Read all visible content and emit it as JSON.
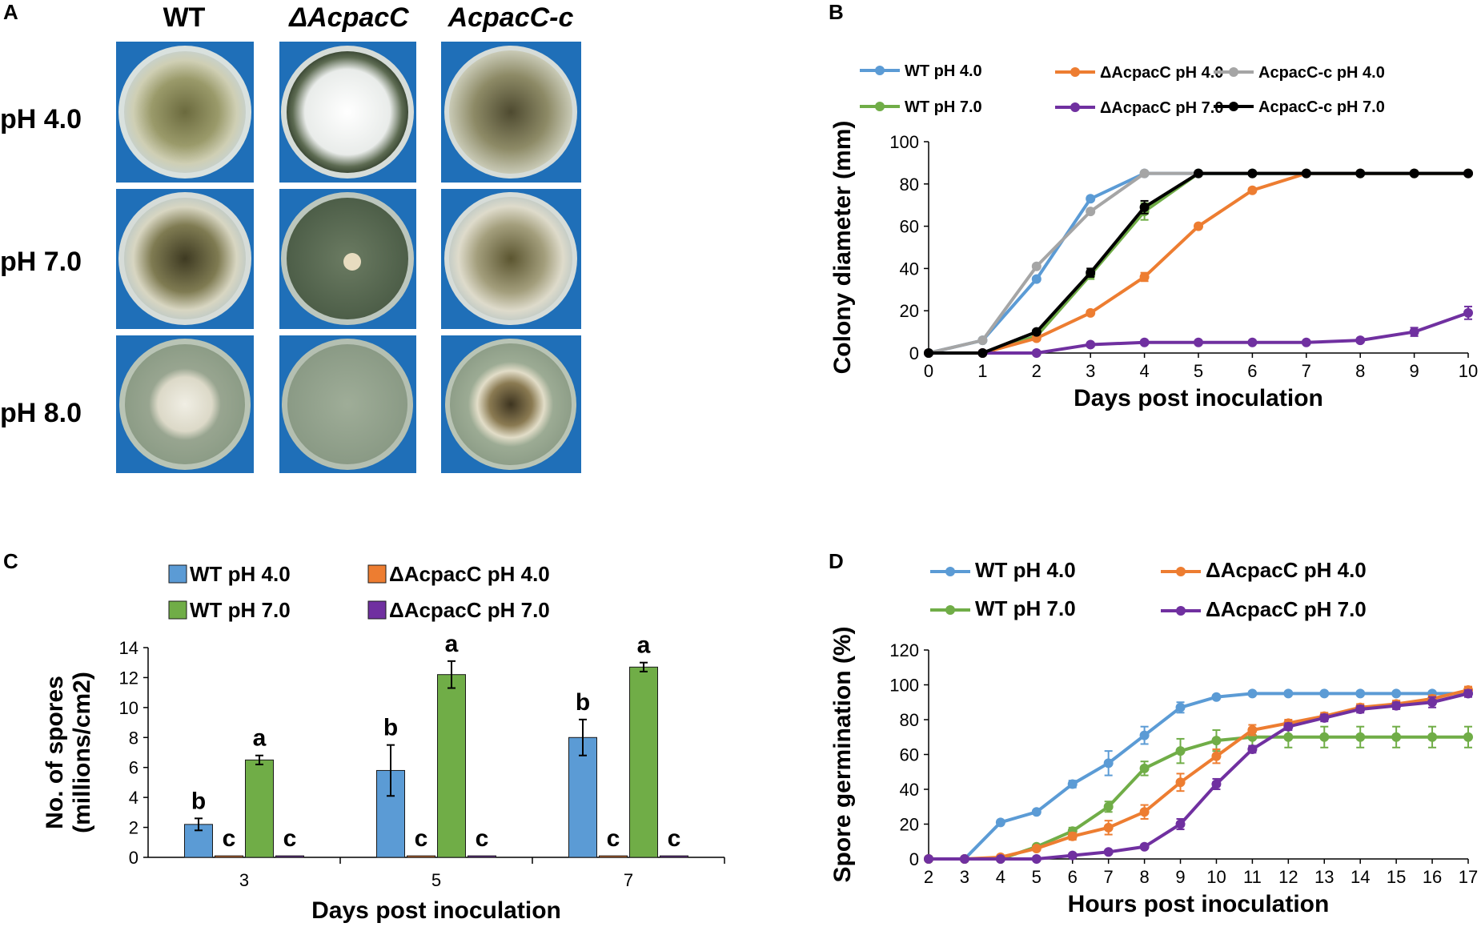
{
  "panels": {
    "a": "A",
    "b": "B",
    "c": "C",
    "d": "D"
  },
  "panel_a": {
    "columns": [
      "WT",
      "ΔAcpacC",
      "AcpacC-c"
    ],
    "rows": [
      "pH 4.0",
      "pH 7.0",
      "pH 8.0"
    ]
  },
  "chart_data": [
    {
      "id": "B",
      "type": "line",
      "xlabel": "Days post inoculation",
      "ylabel": "Colony diameter (mm)",
      "xlim": [
        0,
        10
      ],
      "ylim": [
        0,
        100
      ],
      "xticks": [
        0,
        1,
        2,
        3,
        4,
        5,
        6,
        7,
        8,
        9,
        10
      ],
      "yticks": [
        0,
        20,
        40,
        60,
        80,
        100
      ],
      "x": [
        0,
        1,
        2,
        3,
        4,
        5,
        6,
        7,
        8,
        9,
        10
      ],
      "series": [
        {
          "name": "WT pH 4.0",
          "color": "#5b9bd5",
          "values": [
            0,
            6,
            35,
            73,
            85,
            85,
            85,
            85,
            85,
            85,
            85
          ],
          "errors": [
            0,
            0,
            1,
            1,
            0,
            0,
            0,
            0,
            0,
            0,
            0
          ]
        },
        {
          "name": "WT pH 7.0",
          "color": "#70ad47",
          "values": [
            0,
            0,
            8,
            37,
            67,
            85,
            85,
            85,
            85,
            85,
            85
          ],
          "errors": [
            0,
            0,
            1,
            2,
            4,
            0,
            0,
            0,
            0,
            0,
            0
          ]
        },
        {
          "name": "ΔAcpacC  pH 4.0",
          "color": "#ed7d31",
          "values": [
            0,
            0,
            7,
            19,
            36,
            60,
            77,
            85,
            85,
            85,
            85
          ],
          "errors": [
            0,
            0,
            1,
            1,
            2,
            1,
            1,
            0,
            0,
            0,
            0
          ]
        },
        {
          "name": "ΔAcpacC  pH 7.0",
          "color": "#7030a0",
          "values": [
            0,
            0,
            0,
            4,
            5,
            5,
            5,
            5,
            6,
            10,
            19
          ],
          "errors": [
            0,
            0,
            0,
            0,
            0,
            0,
            0,
            0,
            1,
            2,
            3
          ]
        },
        {
          "name": "AcpacC-c pH 4.0",
          "color": "#a5a5a5",
          "values": [
            0,
            6,
            41,
            67,
            85,
            85,
            85,
            85,
            85,
            85,
            85
          ],
          "errors": [
            0,
            0,
            1,
            1,
            0,
            0,
            0,
            0,
            0,
            0,
            0
          ]
        },
        {
          "name": "AcpacC-c pH 7.0",
          "color": "#000000",
          "values": [
            0,
            0,
            10,
            38,
            69,
            85,
            85,
            85,
            85,
            85,
            85
          ],
          "errors": [
            0,
            0,
            1,
            2,
            3,
            0,
            0,
            0,
            0,
            0,
            0
          ]
        }
      ]
    },
    {
      "id": "C",
      "type": "bar",
      "xlabel": "Days post inoculation",
      "ylabel": "No. of spores",
      "ylabel2": "(millions/cm2)",
      "categories": [
        "3",
        "5",
        "7"
      ],
      "ylim": [
        0,
        14
      ],
      "yticks": [
        0,
        2,
        4,
        6,
        8,
        10,
        12,
        14
      ],
      "series": [
        {
          "name": "WT pH 4.0",
          "color": "#5b9bd5",
          "values": [
            2.2,
            5.8,
            8.0
          ],
          "errors": [
            0.4,
            1.7,
            1.2
          ],
          "letters": [
            "b",
            "b",
            "b"
          ]
        },
        {
          "name": "ΔAcpacC pH 4.0",
          "color": "#ed7d31",
          "values": [
            0.1,
            0.1,
            0.1
          ],
          "errors": [
            0,
            0,
            0
          ],
          "letters": [
            "c",
            "c",
            "c"
          ]
        },
        {
          "name": "WT pH 7.0",
          "color": "#70ad47",
          "values": [
            6.5,
            12.2,
            12.7
          ],
          "errors": [
            0.3,
            0.9,
            0.3
          ],
          "letters": [
            "a",
            "a",
            "a"
          ]
        },
        {
          "name": "ΔAcpacC pH 7.0",
          "color": "#7030a0",
          "values": [
            0.1,
            0.1,
            0.1
          ],
          "errors": [
            0,
            0,
            0
          ],
          "letters": [
            "c",
            "c",
            "c"
          ]
        }
      ]
    },
    {
      "id": "D",
      "type": "line",
      "xlabel": "Hours post inoculation",
      "ylabel": "Spore germination (%)",
      "xlim": [
        2,
        17
      ],
      "ylim": [
        0,
        120
      ],
      "xticks": [
        2,
        3,
        4,
        5,
        6,
        7,
        8,
        9,
        10,
        11,
        12,
        13,
        14,
        15,
        16,
        17
      ],
      "yticks": [
        0,
        20,
        40,
        60,
        80,
        100,
        120
      ],
      "x": [
        2,
        3,
        4,
        5,
        6,
        7,
        8,
        9,
        10,
        11,
        12,
        13,
        14,
        15,
        16,
        17
      ],
      "series": [
        {
          "name": "WT pH 4.0",
          "color": "#5b9bd5",
          "values": [
            0,
            0,
            21,
            27,
            43,
            55,
            71,
            87,
            93,
            95,
            95,
            95,
            95,
            95,
            95,
            95
          ],
          "errors": [
            0,
            0,
            1,
            1,
            2,
            7,
            5,
            3,
            1,
            1,
            1,
            1,
            1,
            1,
            1,
            1
          ]
        },
        {
          "name": "WT pH 7.0",
          "color": "#70ad47",
          "values": [
            0,
            0,
            0,
            7,
            16,
            30,
            52,
            62,
            68,
            70,
            70,
            70,
            70,
            70,
            70,
            70
          ],
          "errors": [
            0,
            0,
            0,
            1,
            2,
            3,
            4,
            7,
            6,
            5,
            6,
            6,
            6,
            6,
            6,
            6
          ]
        },
        {
          "name": "ΔAcpacC pH 4.0",
          "color": "#ed7d31",
          "values": [
            0,
            0,
            1,
            6,
            13,
            18,
            27,
            44,
            59,
            74,
            78,
            82,
            87,
            89,
            92,
            97
          ],
          "errors": [
            0,
            0,
            0,
            1,
            2,
            4,
            4,
            5,
            4,
            3,
            2,
            2,
            2,
            2,
            2,
            2
          ]
        },
        {
          "name": "ΔAcpacC pH 7.0",
          "color": "#7030a0",
          "values": [
            0,
            0,
            0,
            0,
            2,
            4,
            7,
            20,
            43,
            63,
            76,
            81,
            86,
            88,
            90,
            95
          ],
          "errors": [
            0,
            0,
            0,
            0,
            1,
            1,
            1,
            3,
            3,
            2,
            2,
            2,
            2,
            2,
            3,
            2
          ]
        }
      ]
    }
  ]
}
